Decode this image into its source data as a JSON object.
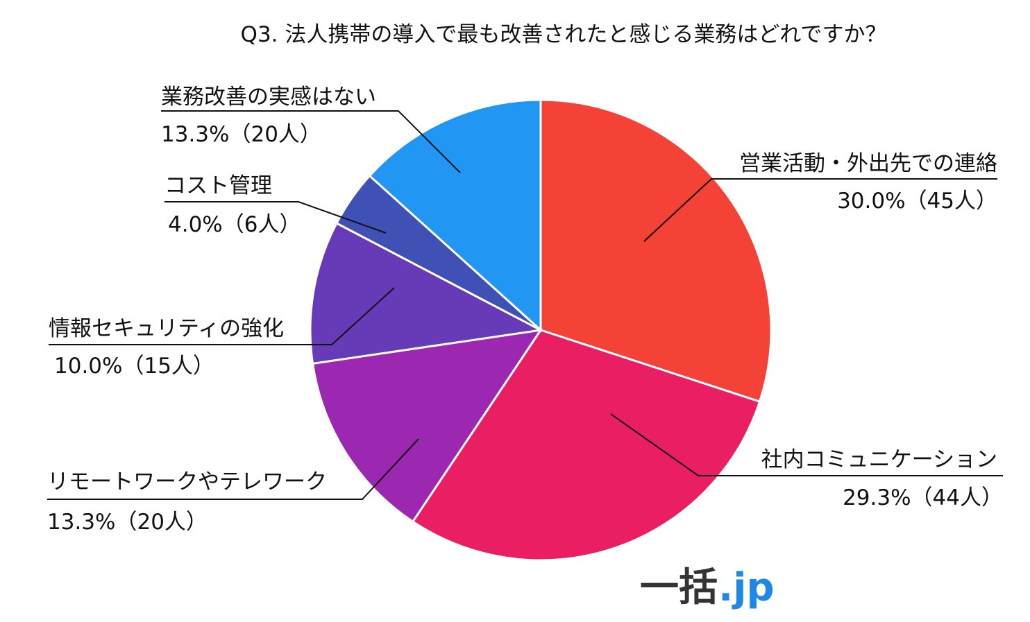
{
  "chart_data": {
    "type": "pie",
    "title": "Q3. 法人携帯の導入で最も改善されたと感じる業務はどれですか？",
    "slices": [
      {
        "label": "営業活動・外出先での連絡",
        "value": 30.0,
        "count": 45,
        "value_text": "30.0%（45人）",
        "color": "#F44336"
      },
      {
        "label": "社内コミュニケーション",
        "value": 29.3,
        "count": 44,
        "value_text": "29.3%（44人）",
        "color": "#E91E63"
      },
      {
        "label": "リモートワークやテレワーク",
        "value": 13.3,
        "count": 20,
        "value_text": "13.3%（20人）",
        "color": "#9C27B0"
      },
      {
        "label": "情報セキュリティの強化",
        "value": 10.0,
        "count": 15,
        "value_text": "10.0%（15人）",
        "color": "#673AB7"
      },
      {
        "label": "コスト管理",
        "value": 4.0,
        "count": 6,
        "value_text": "4.0%（6人）",
        "color": "#3F51B5"
      },
      {
        "label": "業務改善の実感はない",
        "value": 13.3,
        "count": 20,
        "value_text": "13.3%（20人）",
        "color": "#2196F3"
      }
    ],
    "start": "12 o'clock",
    "direction": "clockwise"
  },
  "logo": {
    "main": "一括",
    "suffix": ".jp",
    "suffix_color": "#1E88E5"
  }
}
